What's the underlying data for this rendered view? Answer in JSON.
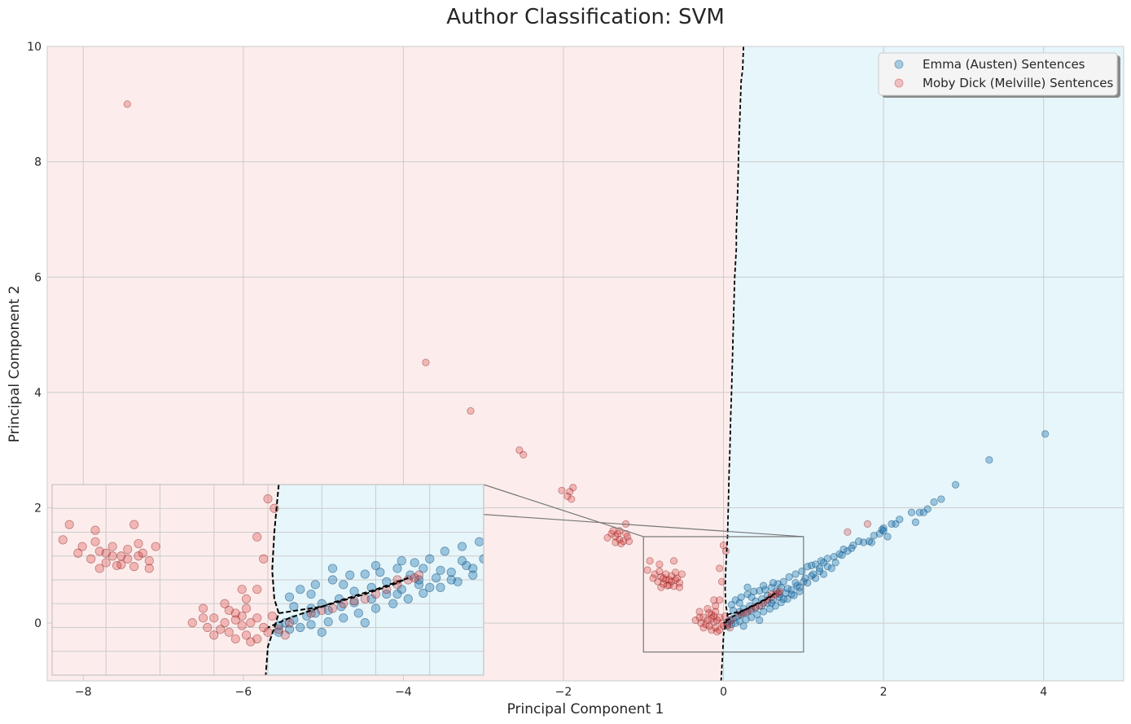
{
  "chart_data": {
    "type": "scatter",
    "title": "Author Classification: SVM",
    "xlabel": "Principal Component 1",
    "ylabel": "Principal Component 2",
    "xlim": [
      -8.45,
      5.0
    ],
    "ylim": [
      -1.0,
      10.0
    ],
    "xticks": [
      -8,
      -6,
      -4,
      -2,
      0,
      2,
      4
    ],
    "yticks": [
      0,
      2,
      4,
      6,
      8,
      10
    ],
    "xtick_labels": [
      "−8",
      "−6",
      "−4",
      "−2",
      "0",
      "2",
      "4"
    ],
    "ytick_labels": [
      "0",
      "2",
      "4",
      "6",
      "8",
      "10"
    ],
    "grid": true,
    "legend_position": "top-right",
    "colors": {
      "emma": "#1f77b4",
      "moby": "#d62728",
      "emma_region": "#e6f6fb",
      "moby_region": "#fcedec",
      "boundary": "#000000"
    },
    "regions": [
      {
        "label": "Emma (Austen)",
        "side": "right of boundary"
      },
      {
        "label": "Moby Dick (Melville)",
        "side": "left of boundary"
      }
    ],
    "decision_boundary": {
      "style": "dashed",
      "main": [
        [
          0.25,
          10.0
        ],
        [
          0.24,
          9.6
        ],
        [
          0.22,
          9.4
        ],
        [
          0.21,
          9.0
        ],
        [
          0.2,
          8.6
        ],
        [
          0.19,
          8.2
        ],
        [
          0.18,
          7.6
        ],
        [
          0.17,
          7.2
        ],
        [
          0.16,
          6.8
        ],
        [
          0.16,
          6.5
        ],
        [
          0.14,
          6.0
        ],
        [
          0.13,
          5.5
        ],
        [
          0.12,
          5.0
        ],
        [
          0.11,
          4.5
        ],
        [
          0.1,
          4.0
        ],
        [
          0.09,
          3.6
        ],
        [
          0.08,
          3.0
        ],
        [
          0.07,
          2.6
        ],
        [
          0.06,
          2.0
        ],
        [
          0.05,
          1.5
        ],
        [
          0.03,
          1.0
        ],
        [
          0.02,
          0.6
        ],
        [
          0.03,
          0.3
        ],
        [
          0.05,
          0.15
        ],
        [
          0.03,
          0.0
        ],
        [
          0.0,
          -0.2
        ],
        [
          -0.01,
          -0.5
        ],
        [
          -0.02,
          -0.75
        ],
        [
          -0.03,
          -1.0
        ]
      ],
      "branch": [
        [
          0.05,
          0.15
        ],
        [
          0.25,
          0.22
        ],
        [
          0.45,
          0.35
        ],
        [
          0.58,
          0.45
        ],
        [
          0.65,
          0.52
        ]
      ],
      "branch_return": [
        [
          0.65,
          0.52
        ],
        [
          0.5,
          0.4
        ],
        [
          0.3,
          0.26
        ],
        [
          0.1,
          0.1
        ],
        [
          0.0,
          0.0
        ]
      ]
    },
    "series": [
      {
        "name": "Emma (Austen) Sentences",
        "color": "#1f77b4",
        "points": [
          [
            4.02,
            3.28
          ],
          [
            3.32,
            2.83
          ],
          [
            2.9,
            2.4
          ],
          [
            2.72,
            2.15
          ],
          [
            2.63,
            2.1
          ],
          [
            2.55,
            1.98
          ],
          [
            2.45,
            1.92
          ],
          [
            2.35,
            1.92
          ],
          [
            2.2,
            1.8
          ],
          [
            2.15,
            1.72
          ],
          [
            2.1,
            1.72
          ],
          [
            2.0,
            1.65
          ],
          [
            1.95,
            1.55
          ],
          [
            2.0,
            1.6
          ],
          [
            1.88,
            1.52
          ],
          [
            1.82,
            1.42
          ],
          [
            1.75,
            1.4
          ],
          [
            1.69,
            1.42
          ],
          [
            1.62,
            1.35
          ],
          [
            2.5,
            1.92
          ],
          [
            2.4,
            1.75
          ],
          [
            2.05,
            1.5
          ],
          [
            1.85,
            1.4
          ],
          [
            1.98,
            1.62
          ],
          [
            1.55,
            1.25
          ],
          [
            1.45,
            1.2
          ],
          [
            1.38,
            1.15
          ],
          [
            1.3,
            1.12
          ],
          [
            1.22,
            1.08
          ],
          [
            1.15,
            1.02
          ],
          [
            1.05,
            0.98
          ],
          [
            0.98,
            0.9
          ],
          [
            0.9,
            0.85
          ],
          [
            0.82,
            0.8
          ],
          [
            0.75,
            0.72
          ],
          [
            0.68,
            0.68
          ],
          [
            0.6,
            0.62
          ],
          [
            0.52,
            0.58
          ],
          [
            0.45,
            0.56
          ],
          [
            0.38,
            0.55
          ],
          [
            0.3,
            0.5
          ],
          [
            0.22,
            0.45
          ],
          [
            0.15,
            0.4
          ],
          [
            0.1,
            0.32
          ],
          [
            1.6,
            1.3
          ],
          [
            1.48,
            1.18
          ],
          [
            1.25,
            1.05
          ],
          [
            1.1,
            1.0
          ],
          [
            1.5,
            1.28
          ],
          [
            1.4,
            1.05
          ],
          [
            1.2,
            0.9
          ],
          [
            1.1,
            0.82
          ],
          [
            1.0,
            0.72
          ],
          [
            0.92,
            0.65
          ],
          [
            0.85,
            0.58
          ],
          [
            0.78,
            0.52
          ],
          [
            0.7,
            0.45
          ],
          [
            0.62,
            0.4
          ],
          [
            0.55,
            0.35
          ],
          [
            0.48,
            0.3
          ],
          [
            0.4,
            0.26
          ],
          [
            0.34,
            0.22
          ],
          [
            0.28,
            0.18
          ],
          [
            0.22,
            0.15
          ],
          [
            0.18,
            0.12
          ],
          [
            0.12,
            0.08
          ],
          [
            0.08,
            0.05
          ],
          [
            0.05,
            0.02
          ],
          [
            0.95,
            0.55
          ],
          [
            0.88,
            0.48
          ],
          [
            0.8,
            0.42
          ],
          [
            0.72,
            0.36
          ],
          [
            0.65,
            0.3
          ],
          [
            0.58,
            0.25
          ],
          [
            0.5,
            0.2
          ],
          [
            0.42,
            0.15
          ],
          [
            0.35,
            0.1
          ],
          [
            0.28,
            0.06
          ],
          [
            0.2,
            0.03
          ],
          [
            0.15,
            0.0
          ],
          [
            0.1,
            -0.02
          ],
          [
            0.05,
            -0.05
          ],
          [
            1.3,
            0.98
          ],
          [
            0.72,
            0.62
          ],
          [
            0.66,
            0.55
          ],
          [
            0.55,
            0.48
          ],
          [
            0.48,
            0.42
          ],
          [
            0.4,
            0.38
          ],
          [
            0.33,
            0.3
          ],
          [
            0.25,
            0.25
          ],
          [
            0.2,
            0.2
          ],
          [
            0.6,
            0.35
          ],
          [
            0.75,
            0.42
          ],
          [
            0.85,
            0.5
          ],
          [
            0.95,
            0.62
          ],
          [
            1.05,
            0.7
          ],
          [
            1.15,
            0.78
          ],
          [
            1.25,
            0.85
          ],
          [
            1.35,
            0.95
          ],
          [
            0.3,
            0.62
          ],
          [
            0.2,
            0.35
          ],
          [
            0.25,
            -0.05
          ],
          [
            0.45,
            0.05
          ],
          [
            0.12,
            0.22
          ],
          [
            0.35,
            0.45
          ],
          [
            0.5,
            0.65
          ],
          [
            0.62,
            0.7
          ],
          [
            0.7,
            0.5
          ],
          [
            0.8,
            0.6
          ],
          [
            0.9,
            0.7
          ],
          [
            1.02,
            0.78
          ],
          [
            1.12,
            0.85
          ],
          [
            1.2,
            0.95
          ]
        ]
      },
      {
        "name": "Moby Dick (Melville) Sentences",
        "color": "#d62728",
        "points": [
          [
            -7.45,
            9.0
          ],
          [
            -3.72,
            4.52
          ],
          [
            -3.16,
            3.68
          ],
          [
            -2.55,
            3.0
          ],
          [
            -2.5,
            2.92
          ],
          [
            -1.88,
            2.35
          ],
          [
            -1.92,
            2.28
          ],
          [
            -2.02,
            2.3
          ],
          [
            -1.95,
            2.2
          ],
          [
            -1.9,
            2.15
          ],
          [
            -1.22,
            1.72
          ],
          [
            -1.4,
            1.55
          ],
          [
            -1.35,
            1.5
          ],
          [
            -1.3,
            1.45
          ],
          [
            -1.25,
            1.42
          ],
          [
            -1.2,
            1.5
          ],
          [
            -1.28,
            1.38
          ],
          [
            -1.38,
            1.6
          ],
          [
            -1.32,
            1.55
          ],
          [
            -1.45,
            1.48
          ],
          [
            -1.22,
            1.55
          ],
          [
            -1.18,
            1.42
          ],
          [
            -1.3,
            1.6
          ],
          [
            -1.35,
            1.4
          ],
          [
            -0.92,
            1.08
          ],
          [
            -0.8,
            1.02
          ],
          [
            -0.62,
            1.08
          ],
          [
            -0.95,
            0.92
          ],
          [
            -0.86,
            0.85
          ],
          [
            -0.78,
            0.8
          ],
          [
            -0.72,
            0.75
          ],
          [
            -0.65,
            0.72
          ],
          [
            -0.6,
            0.75
          ],
          [
            -0.55,
            0.7
          ],
          [
            -0.82,
            0.72
          ],
          [
            -0.75,
            0.68
          ],
          [
            -0.68,
            0.66
          ],
          [
            -0.62,
            0.64
          ],
          [
            -0.78,
            0.62
          ],
          [
            -0.7,
            0.65
          ],
          [
            -0.58,
            0.78
          ],
          [
            -0.52,
            0.85
          ],
          [
            -0.88,
            0.78
          ],
          [
            -0.72,
            0.85
          ],
          [
            -0.65,
            0.82
          ],
          [
            -0.8,
            0.9
          ],
          [
            -0.6,
            0.88
          ],
          [
            -0.55,
            0.62
          ],
          [
            -0.75,
            0.78
          ],
          [
            -0.68,
            0.75
          ],
          [
            0.0,
            1.35
          ],
          [
            0.03,
            1.25
          ],
          [
            -0.05,
            0.95
          ],
          [
            -0.02,
            0.72
          ],
          [
            -0.05,
            0.4
          ],
          [
            -0.1,
            0.3
          ],
          [
            -0.2,
            0.25
          ],
          [
            -0.3,
            0.2
          ],
          [
            -0.15,
            0.15
          ],
          [
            -0.25,
            0.1
          ],
          [
            -0.2,
            0.05
          ],
          [
            -0.12,
            0.02
          ],
          [
            -0.28,
            0.0
          ],
          [
            -0.18,
            -0.05
          ],
          [
            -0.1,
            -0.08
          ],
          [
            -0.05,
            -0.12
          ],
          [
            -0.15,
            -0.12
          ],
          [
            -0.08,
            0.05
          ],
          [
            -0.22,
            -0.02
          ],
          [
            -0.02,
            0.0
          ],
          [
            0.0,
            -0.05
          ],
          [
            0.05,
            -0.02
          ],
          [
            -0.05,
            0.1
          ],
          [
            -0.12,
            0.12
          ],
          [
            -0.3,
            0.1
          ],
          [
            -0.35,
            0.05
          ],
          [
            -0.25,
            -0.08
          ],
          [
            -0.1,
            0.2
          ],
          [
            0.02,
            0.12
          ],
          [
            0.08,
            -0.08
          ],
          [
            -0.18,
            0.18
          ],
          [
            -0.08,
            -0.15
          ],
          [
            -0.15,
            0.08
          ],
          [
            0.2,
            0.15
          ],
          [
            0.3,
            0.2
          ],
          [
            0.45,
            0.3
          ],
          [
            0.55,
            0.4
          ],
          [
            0.65,
            0.5
          ],
          [
            0.6,
            0.45
          ],
          [
            0.7,
            0.55
          ],
          [
            0.5,
            0.35
          ],
          [
            0.35,
            0.25
          ],
          [
            0.25,
            0.18
          ],
          [
            0.1,
            0.05
          ],
          [
            -0.12,
            0.4
          ],
          [
            0.4,
            0.28
          ],
          [
            0.6,
            0.5
          ],
          [
            0.68,
            0.52
          ],
          [
            1.55,
            1.58
          ],
          [
            1.8,
            1.72
          ]
        ]
      }
    ],
    "inset": {
      "xlim": [
        -1.0,
        1.0
      ],
      "ylim": [
        -0.5,
        1.5
      ]
    }
  },
  "legend": {
    "items": [
      {
        "label": "Emma (Austen) Sentences",
        "color": "#1f77b4"
      },
      {
        "label": "Moby Dick (Melville) Sentences",
        "color": "#d62728"
      }
    ]
  }
}
